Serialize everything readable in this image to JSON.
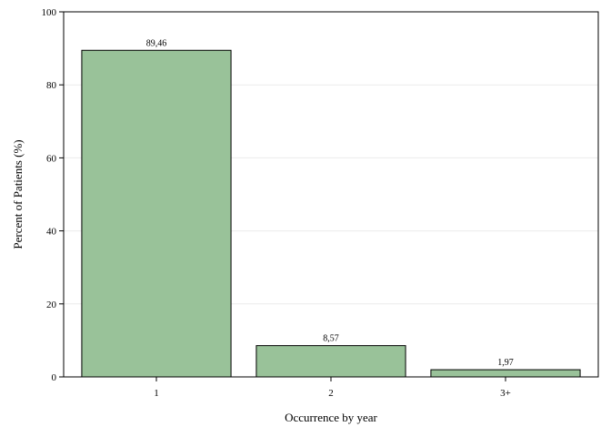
{
  "chart_data": {
    "type": "bar",
    "title": "",
    "xlabel": "Occurrence by year",
    "ylabel": "Percent of Patients (%)",
    "categories": [
      "1",
      "2",
      "3+"
    ],
    "values": [
      89.46,
      8.57,
      1.97
    ],
    "data_labels": [
      "89,46",
      "8,57",
      "1,97"
    ],
    "ylim": [
      0,
      100
    ],
    "yticks": [
      0,
      20,
      40,
      60,
      80,
      100
    ],
    "ytick_labels": [
      "0",
      "20",
      "40",
      "60",
      "80",
      "100"
    ],
    "grid": true,
    "bar_color": "#99c299",
    "legend": "none"
  }
}
